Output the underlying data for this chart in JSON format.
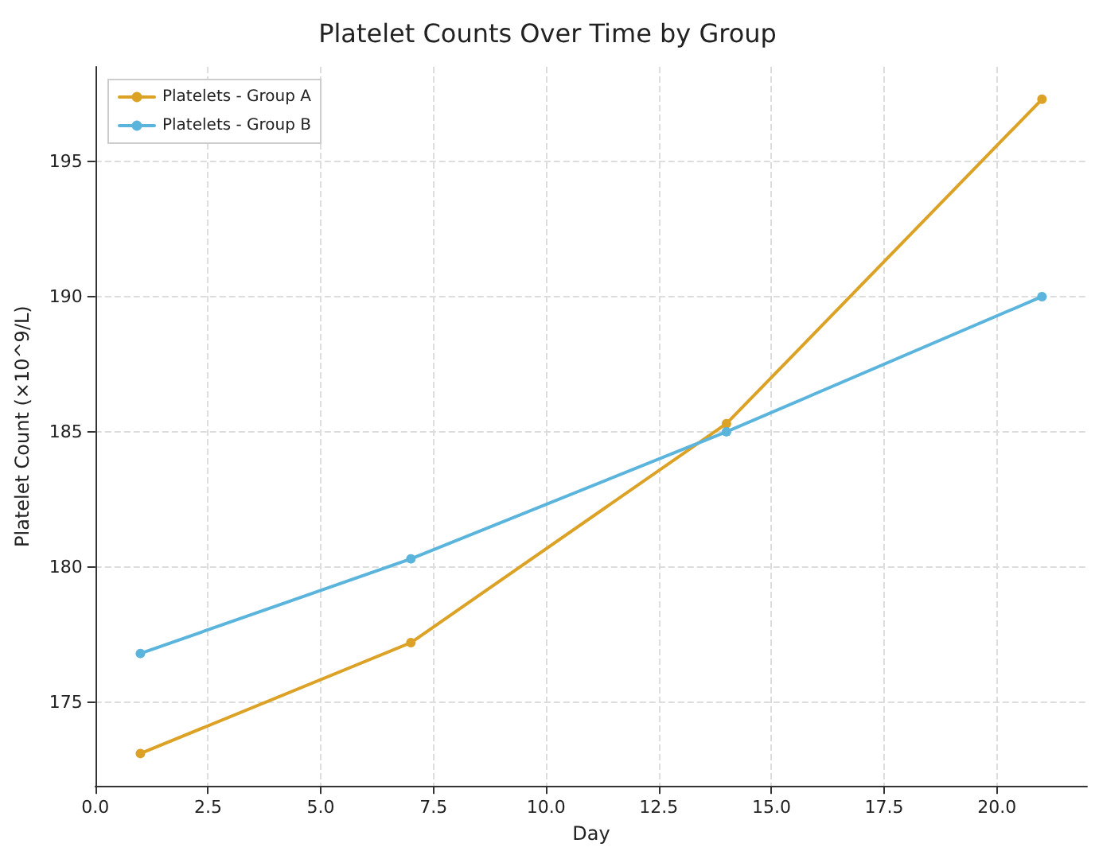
{
  "chart_data": {
    "type": "line",
    "title": "Platelet Counts Over Time by Group",
    "xlabel": "Day",
    "ylabel": "Platelet Count (×10^9/L)",
    "x": [
      1,
      7,
      14,
      21
    ],
    "series": [
      {
        "name": "Platelets - Group A",
        "color": "#dca226",
        "values": [
          173.1,
          177.2,
          185.3,
          197.3
        ]
      },
      {
        "name": "Platelets - Group B",
        "color": "#5ab4dc",
        "values": [
          176.8,
          180.3,
          185.0,
          190.0
        ]
      }
    ],
    "xlim": [
      0,
      22
    ],
    "xticks": [
      {
        "value": 0,
        "label": "0.0"
      },
      {
        "value": 2.5,
        "label": "2.5"
      },
      {
        "value": 5,
        "label": "5.0"
      },
      {
        "value": 7.5,
        "label": "7.5"
      },
      {
        "value": 10,
        "label": "10.0"
      },
      {
        "value": 12.5,
        "label": "12.5"
      },
      {
        "value": 15,
        "label": "15.0"
      },
      {
        "value": 17.5,
        "label": "17.5"
      },
      {
        "value": 20,
        "label": "20.0"
      }
    ],
    "ylim": [
      171.9,
      198.5
    ],
    "yticks": [
      175,
      180,
      185,
      190,
      195
    ],
    "grid": true,
    "legend": "top left",
    "marker": "circle",
    "line_style": "solid"
  }
}
